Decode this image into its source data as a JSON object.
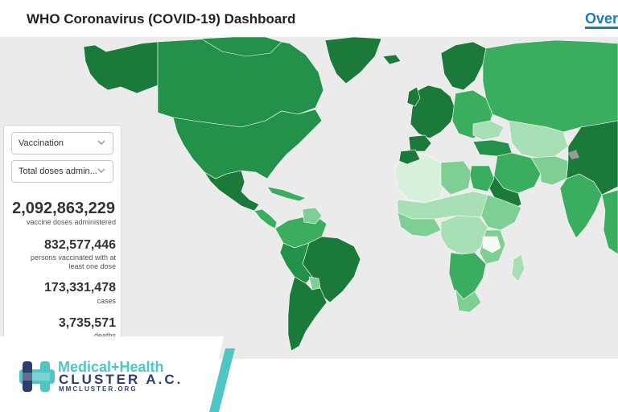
{
  "header": {
    "title": "WHO Coronavirus (COVID-19) Dashboard",
    "tab_link": "Over"
  },
  "panel": {
    "dropdown_category": "Vaccination",
    "dropdown_metric": "Total doses admin...",
    "stats": [
      {
        "value": "2,092,863,229",
        "label": "vaccine doses administered"
      },
      {
        "value": "832,577,446",
        "label": "persons vaccinated with at least one dose"
      },
      {
        "value": "173,331,478",
        "label": "cases"
      },
      {
        "value": "3,735,571",
        "label": "deaths"
      }
    ]
  },
  "map": {
    "colors": {
      "ocean": "#ebebeb",
      "darkest": "#1b7a3a",
      "dark": "#24914a",
      "mid": "#3aad5f",
      "light": "#7fcf94",
      "lighter": "#a8dfb4",
      "lightest": "#d8f1dc",
      "nodata": "#9a9a9a"
    }
  },
  "logo": {
    "line1": "Medical+Health",
    "line2": "CLUSTER A.C.",
    "line3": "MMCLUSTER.ORG",
    "accent_color": "#4fc6c3",
    "navy_color": "#2c3e6b"
  }
}
